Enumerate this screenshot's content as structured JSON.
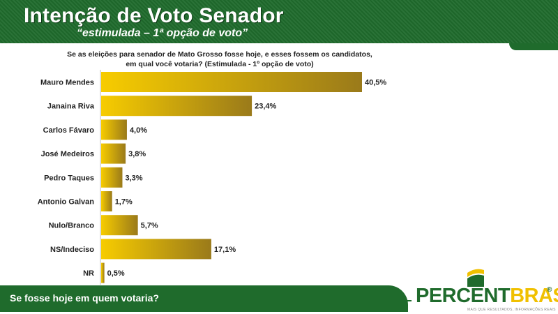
{
  "header": {
    "title": "Intenção de Voto Senador",
    "subtitle": "“estimulada – 1ª opção de voto”"
  },
  "question": "Se as eleições para senador de Mato Grosso fosse hoje, e esses fossem os candidatos, em qual você votaria? (Estimulada - 1º opção de voto)",
  "footer": {
    "text": "Se fosse hoje em quem votaria?"
  },
  "logo": {
    "name_part1": "PERCENT",
    "name_part2": "BRASIL",
    "reg": "®",
    "tagline": "MAIS QUE RESULTADOS, INFORMAÇÕES REAIS"
  },
  "colors": {
    "green": "#1f6b2c",
    "bar_light": "#f5c800",
    "bar_dark": "#9a7a1a"
  },
  "chart_data": {
    "type": "bar",
    "orientation": "horizontal",
    "categories": [
      "Mauro Mendes",
      "Janaina Riva",
      "Carlos Fávaro",
      "José Medeiros",
      "Pedro Taques",
      "Antonio Galvan",
      "Nulo/Branco",
      "NS/Indeciso",
      "NR"
    ],
    "values": [
      40.5,
      23.4,
      4.0,
      3.8,
      3.3,
      1.7,
      5.7,
      17.1,
      0.5
    ],
    "labels": [
      "40,5%",
      "23,4%",
      "4,0%",
      "3,8%",
      "3,3%",
      "1,7%",
      "5,7%",
      "17,1%",
      "0,5%"
    ],
    "xlim": [
      0,
      40.5
    ],
    "grid": false,
    "legend": "none"
  }
}
